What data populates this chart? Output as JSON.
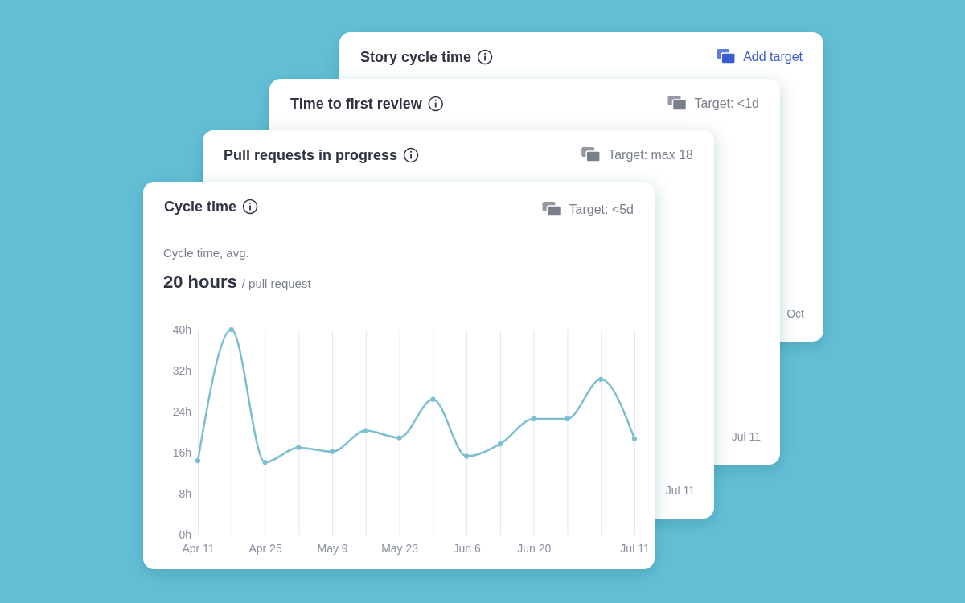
{
  "chart_data": [
    {
      "type": "other",
      "title": "Story cycle time",
      "annotations": [
        "Add target",
        "Oct"
      ]
    },
    {
      "type": "other",
      "title": "Time to first review",
      "annotations": [
        "Target: <1d",
        "Jul 11"
      ]
    },
    {
      "type": "other",
      "title": "Pull requests in progress",
      "annotations": [
        "Target: max 18",
        "Jul 11"
      ]
    },
    {
      "type": "line",
      "title": "Cycle time",
      "subtitle": "Cycle time, avg.",
      "annotations": [
        "Target: <5d",
        "20 hours",
        "/ pull request"
      ],
      "x": [
        "--04-11",
        "--04-18",
        "--04-25",
        "--05-02",
        "--05-09",
        "--05-16",
        "--05-23",
        "--05-30",
        "--06-06",
        "--06-13",
        "--06-20",
        "--06-27",
        "--07-04",
        "--07-11"
      ],
      "series": [
        {
          "color": "#7bbfd1",
          "values": [
            14.4,
            40,
            14.1,
            17,
            16.2,
            20.3,
            18.9,
            26.4,
            15.3,
            17.7,
            22.6,
            22.6,
            30.3,
            18.7
          ]
        }
      ],
      "xlim": [
        "--04-11",
        "--07-11"
      ],
      "xticks": [
        {
          "value": "--04-11",
          "label": "Apr 11"
        },
        {
          "value": "--04-18",
          "label": null
        },
        {
          "value": "--04-25",
          "label": "Apr 25"
        },
        {
          "value": "--05-02",
          "label": null
        },
        {
          "value": "--05-09",
          "label": "May 9"
        },
        {
          "value": "--05-16",
          "label": null
        },
        {
          "value": "--05-23",
          "label": "May 23"
        },
        {
          "value": "--05-30",
          "label": null
        },
        {
          "value": "--06-06",
          "label": "Jun 6"
        },
        {
          "value": "--06-13",
          "label": null
        },
        {
          "value": "--06-20",
          "label": "Jun 20"
        },
        {
          "value": "--06-27",
          "label": null
        },
        {
          "value": "--07-04",
          "label": null
        },
        {
          "value": "--07-11",
          "label": "Jul 11"
        }
      ],
      "ylim": [
        0,
        40
      ],
      "yticks": [
        {
          "value": 0,
          "label": "0h"
        },
        {
          "value": 8,
          "label": "8h"
        },
        {
          "value": 16,
          "label": "16h"
        },
        {
          "value": 24,
          "label": "24h"
        },
        {
          "value": 32,
          "label": "32h"
        },
        {
          "value": 40,
          "label": "40h"
        }
      ],
      "grid": true,
      "marker": "circle",
      "line_style": "solid"
    }
  ]
}
